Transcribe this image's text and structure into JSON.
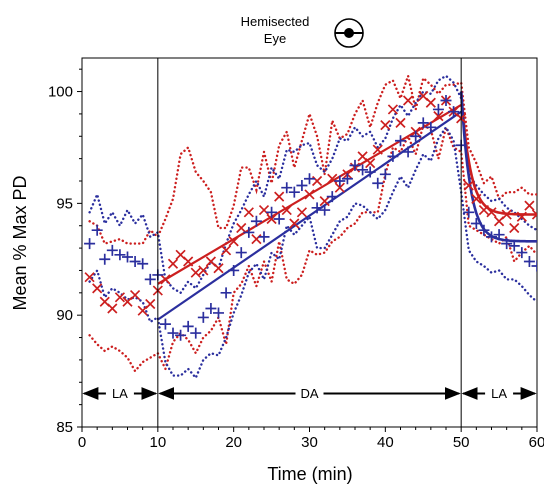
{
  "chart_data": {
    "type": "line",
    "header_line1": "Hemisected",
    "header_line2": "Eye",
    "xlabel": "Time (min)",
    "ylabel": "Mean % Max PD",
    "xlim": [
      0,
      60
    ],
    "ylim": [
      85,
      101.5
    ],
    "xticks": [
      "0",
      "10",
      "20",
      "30",
      "40",
      "50",
      "60"
    ],
    "yticks": [
      "85",
      "90",
      "95",
      "100"
    ],
    "phase_boundaries": [
      10,
      50
    ],
    "phases": [
      {
        "label": "LA",
        "start": 0,
        "end": 10
      },
      {
        "label": "DA",
        "start": 10,
        "end": 50
      },
      {
        "label": "LA",
        "start": 50,
        "end": 60
      }
    ],
    "colors": {
      "red": "#cc1f1f",
      "blue": "#2b2f9e"
    },
    "series": [
      {
        "marker": "x",
        "color": "#cc1f1f",
        "x": [
          1,
          2,
          3,
          4,
          5,
          6,
          7,
          8,
          9,
          10,
          11,
          12,
          13,
          14,
          15,
          16,
          17,
          18,
          19,
          20,
          21,
          22,
          23,
          24,
          25,
          26,
          27,
          28,
          29,
          30,
          31,
          32,
          33,
          34,
          35,
          36,
          37,
          38,
          39,
          40,
          41,
          42,
          43,
          44,
          45,
          46,
          47,
          48,
          49,
          50,
          51,
          52,
          53,
          54,
          55,
          56,
          57,
          58,
          59,
          60
        ],
        "y": [
          91.7,
          91.2,
          90.6,
          90.3,
          90.8,
          90.6,
          90.9,
          90.2,
          90.5,
          91.1,
          91.6,
          92.3,
          92.7,
          92.4,
          91.9,
          92.0,
          92.4,
          92.1,
          92.9,
          93.3,
          93.9,
          94.6,
          93.4,
          94.7,
          94.3,
          95.3,
          94.7,
          94.1,
          94.6,
          95.4,
          96.0,
          95.1,
          96.1,
          95.7,
          96.3,
          96.6,
          97.1,
          96.8,
          97.4,
          98.5,
          99.2,
          98.6,
          99.6,
          98.2,
          99.8,
          99.5,
          98.9,
          99.6,
          99.1,
          98.8,
          95.8,
          95.2,
          94.7,
          94.6,
          94.2,
          94.5,
          93.9,
          94.4,
          94.9,
          94.5
        ]
      },
      {
        "marker": "+",
        "color": "#2b2f9e",
        "x": [
          1,
          2,
          3,
          4,
          5,
          6,
          7,
          8,
          9,
          10,
          11,
          12,
          13,
          14,
          15,
          16,
          17,
          18,
          19,
          20,
          21,
          22,
          23,
          24,
          25,
          26,
          27,
          28,
          29,
          30,
          31,
          32,
          33,
          34,
          35,
          36,
          37,
          38,
          39,
          40,
          41,
          42,
          43,
          44,
          45,
          46,
          47,
          48,
          49,
          50,
          51,
          52,
          53,
          54,
          55,
          56,
          57,
          58,
          59,
          60
        ],
        "y": [
          93.2,
          93.8,
          92.5,
          92.9,
          92.7,
          92.6,
          92.4,
          92.3,
          91.6,
          91.8,
          89.6,
          89.2,
          89.1,
          89.5,
          89.2,
          89.9,
          90.3,
          90.1,
          91.0,
          92.0,
          92.8,
          93.7,
          94.2,
          93.5,
          94.6,
          94.3,
          95.7,
          95.5,
          95.8,
          96.1,
          94.8,
          94.7,
          95.3,
          96.0,
          96.1,
          96.7,
          96.5,
          96.4,
          95.9,
          96.3,
          97.1,
          97.8,
          97.3,
          98.0,
          98.6,
          98.4,
          99.2,
          99.6,
          99.1,
          97.6,
          94.6,
          94.1,
          93.8,
          93.5,
          93.6,
          93.2,
          93.1,
          92.8,
          92.4,
          92.2
        ]
      }
    ],
    "fits": [
      {
        "color": "#cc1f1f",
        "x": [
          10,
          50
        ],
        "y": [
          91.4,
          99.4
        ],
        "recovery": {
          "start": 100.0,
          "plateau": 94.5
        }
      },
      {
        "color": "#2b2f9e",
        "x": [
          10,
          50
        ],
        "y": [
          89.8,
          99.1
        ],
        "recovery": {
          "start": 100.0,
          "plateau": 93.3
        }
      }
    ],
    "bands": [
      {
        "color": "#cc1f1f",
        "x": [
          1,
          2,
          3,
          4,
          5,
          6,
          7,
          8,
          9,
          10,
          11,
          12,
          13,
          14,
          15,
          16,
          17,
          18,
          19,
          20,
          21,
          22,
          23,
          24,
          25,
          26,
          27,
          28,
          29,
          30,
          31,
          32,
          33,
          34,
          35,
          36,
          37,
          38,
          39,
          40,
          41,
          42,
          43,
          44,
          45,
          46,
          47,
          48,
          49,
          50,
          51,
          52,
          53,
          54,
          55,
          56,
          57,
          58,
          59,
          60
        ],
        "upper": [
          94.2,
          94.0,
          93.2,
          93.3,
          93.4,
          93.2,
          93.2,
          93.2,
          93.8,
          93.5,
          94.3,
          95.2,
          97.2,
          97.5,
          96.4,
          96.0,
          95.5,
          93.9,
          93.9,
          94.9,
          96.6,
          96.6,
          95.6,
          97.3,
          95.9,
          97.6,
          98.2,
          96.6,
          97.8,
          99.0,
          98.0,
          96.3,
          98.7,
          97.9,
          98.1,
          99.0,
          99.6,
          98.4,
          99.5,
          100.3,
          100.5,
          99.7,
          100.7,
          99.2,
          100.6,
          100.3,
          99.9,
          100.3,
          100.3,
          100.4,
          97.5,
          96.8,
          95.9,
          96.2,
          95.2,
          95.5,
          95.5,
          95.7,
          95.4,
          95.4
        ],
        "lower": [
          89.1,
          88.7,
          88.4,
          88.6,
          88.4,
          88.1,
          87.5,
          87.9,
          88.1,
          88.3,
          87.6,
          88.8,
          89.2,
          88.9,
          88.3,
          89.0,
          89.3,
          89.9,
          88.7,
          91.0,
          91.4,
          92.2,
          91.3,
          92.4,
          91.5,
          93.3,
          91.6,
          91.4,
          91.8,
          92.9,
          92.7,
          92.8,
          93.3,
          93.5,
          93.9,
          94.1,
          94.6,
          94.6,
          94.6,
          96.3,
          97.5,
          97.3,
          98.0,
          97.2,
          98.5,
          98.3,
          97.0,
          98.4,
          97.5,
          97.3,
          94.0,
          93.8,
          93.6,
          93.4,
          93.2,
          93.5,
          92.4,
          92.8,
          93.1,
          92.7
        ]
      },
      {
        "color": "#2b2f9e",
        "x": [
          1,
          2,
          3,
          4,
          5,
          6,
          7,
          8,
          9,
          10,
          11,
          12,
          13,
          14,
          15,
          16,
          17,
          18,
          19,
          20,
          21,
          22,
          23,
          24,
          25,
          26,
          27,
          28,
          29,
          30,
          31,
          32,
          33,
          34,
          35,
          36,
          37,
          38,
          39,
          40,
          41,
          42,
          43,
          44,
          45,
          46,
          47,
          48,
          49,
          50,
          51,
          52,
          53,
          54,
          55,
          56,
          57,
          58,
          59,
          60
        ],
        "upper": [
          94.6,
          95.4,
          94.1,
          94.6,
          94.0,
          94.7,
          94.1,
          94.5,
          93.5,
          93.7,
          91.6,
          91.2,
          91.0,
          91.5,
          91.2,
          91.8,
          92.4,
          92.1,
          93.2,
          94.1,
          94.7,
          95.4,
          96.0,
          95.3,
          96.6,
          96.1,
          97.4,
          97.3,
          97.6,
          97.7,
          96.7,
          96.4,
          97.0,
          97.9,
          97.8,
          98.4,
          98.0,
          98.2,
          97.5,
          97.9,
          98.8,
          99.4,
          98.9,
          99.5,
          100.0,
          99.9,
          100.5,
          100.7,
          100.4,
          99.7,
          96.3,
          95.8,
          95.4,
          95.1,
          95.2,
          94.8,
          94.6,
          94.3,
          94.0,
          93.8
        ],
        "lower": [
          91.5,
          92.0,
          90.8,
          91.2,
          91.0,
          90.7,
          90.8,
          90.6,
          89.7,
          89.9,
          87.9,
          87.3,
          87.3,
          87.6,
          87.2,
          88.0,
          88.3,
          88.2,
          89.0,
          90.1,
          90.9,
          91.9,
          92.3,
          91.6,
          92.8,
          92.5,
          94.0,
          93.6,
          94.0,
          94.4,
          93.0,
          93.0,
          93.6,
          94.2,
          94.4,
          95.0,
          94.9,
          94.6,
          94.3,
          94.7,
          95.5,
          96.2,
          95.7,
          96.5,
          97.2,
          96.9,
          97.9,
          98.4,
          97.8,
          95.5,
          92.9,
          92.4,
          92.2,
          91.9,
          92.0,
          91.6,
          91.6,
          91.3,
          90.9,
          90.6
        ]
      }
    ]
  }
}
